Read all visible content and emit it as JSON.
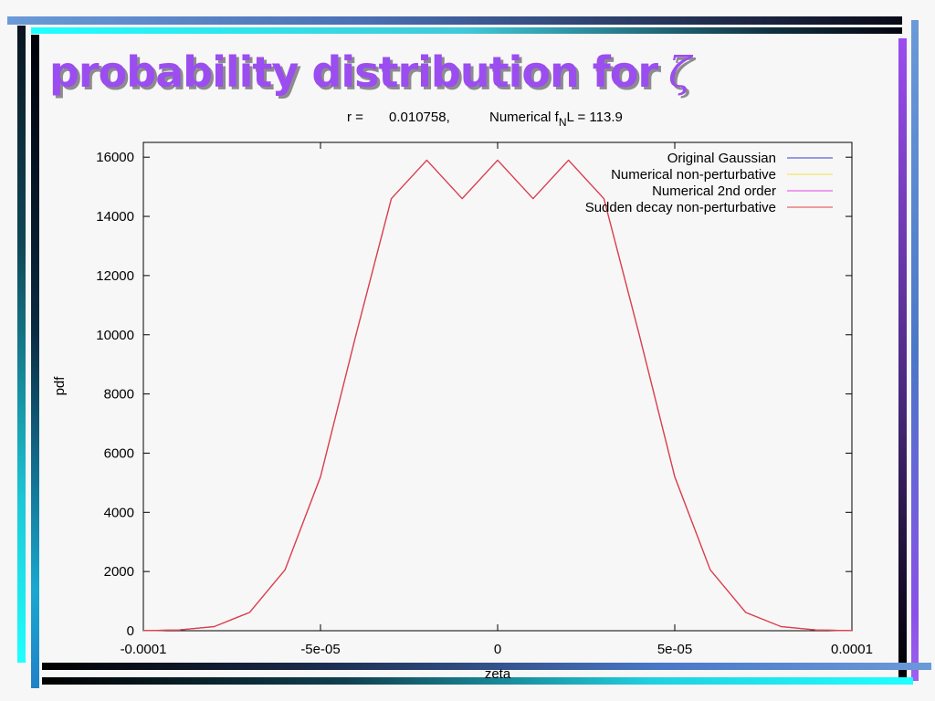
{
  "slide": {
    "title_text": "probability distribution for",
    "title_symbol": "ζ",
    "title_color": "#9b4df0"
  },
  "chart_data": {
    "type": "line",
    "subtitle": {
      "r_label": "r =",
      "r_value": "0.010758,",
      "fnl_prefix": "Numerical f",
      "fnl_sub": "N",
      "fnl_suffix": "L = 113.9"
    },
    "xlabel": "zeta",
    "ylabel": "pdf",
    "xlim": [
      -0.0001,
      0.0001
    ],
    "ylim": [
      0,
      16500
    ],
    "xticks": [
      -0.0001,
      -5e-05,
      0,
      5e-05,
      0.0001
    ],
    "xtick_labels": [
      "-0.0001",
      "-5e-05",
      "0",
      "5e-05",
      "0.0001"
    ],
    "yticks": [
      0,
      2000,
      4000,
      6000,
      8000,
      10000,
      12000,
      14000,
      16000
    ],
    "ytick_labels": [
      "0",
      "2000",
      "4000",
      "6000",
      "8000",
      "10000",
      "12000",
      "14000",
      "16000"
    ],
    "grid": false,
    "legend_position": "top-right",
    "x": [
      -0.0001,
      -9e-05,
      -8e-05,
      -7e-05,
      -6e-05,
      -5e-05,
      -4e-05,
      -3e-05,
      -2e-05,
      -1e-05,
      0,
      1e-05,
      2e-05,
      3e-05,
      4e-05,
      5e-05,
      6e-05,
      7e-05,
      8e-05,
      9e-05,
      0.0001
    ],
    "series": [
      {
        "name": "Original Gaussian",
        "color": "#3b3bd6",
        "values": [
          3,
          24,
          140,
          620,
          2060,
          5200,
          9990,
          14600,
          15900,
          14600,
          15900,
          14600,
          15900,
          14600,
          9990,
          5200,
          2060,
          620,
          140,
          24,
          3
        ]
      },
      {
        "name": "Numerical non-perturbative",
        "color": "#f0e040",
        "values": [
          3,
          24,
          140,
          620,
          2060,
          5200,
          9990,
          14600,
          15900,
          14600,
          15900,
          14600,
          15900,
          14600,
          9990,
          5200,
          2060,
          620,
          140,
          24,
          3
        ]
      },
      {
        "name": "Numerical 2nd order",
        "color": "#e040e0",
        "values": [
          3,
          24,
          140,
          620,
          2060,
          5200,
          9990,
          14600,
          15900,
          14600,
          15900,
          14600,
          15900,
          14600,
          9990,
          5200,
          2060,
          620,
          140,
          24,
          3
        ]
      },
      {
        "name": "Sudden decay non-perturbative",
        "color": "#e04040",
        "values": [
          3,
          24,
          140,
          620,
          2060,
          5200,
          9990,
          14600,
          15900,
          14600,
          15900,
          14600,
          15900,
          14600,
          9990,
          5200,
          2060,
          620,
          140,
          24,
          3
        ]
      }
    ]
  }
}
